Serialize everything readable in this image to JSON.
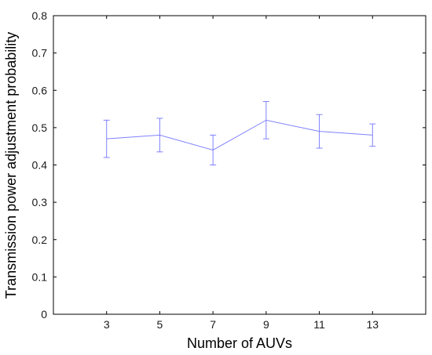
{
  "chart_data": {
    "type": "line",
    "xlabel": "Number of AUVs",
    "ylabel": "Transmission power adjustment probability",
    "xlim": [
      1,
      15
    ],
    "ylim": [
      0,
      0.8
    ],
    "x_ticks": [
      3,
      5,
      7,
      9,
      11,
      13
    ],
    "y_ticks": [
      0,
      0.1,
      0.2,
      0.3,
      0.4,
      0.5,
      0.6,
      0.7,
      0.8
    ],
    "x_tick_labels": [
      "3",
      "5",
      "7",
      "9",
      "11",
      "13"
    ],
    "y_tick_labels": [
      "0",
      "0.1",
      "0.2",
      "0.3",
      "0.4",
      "0.5",
      "0.6",
      "0.7",
      "0.8"
    ],
    "grid": false,
    "legend": "none",
    "series": [
      {
        "color": "#8080ff",
        "x": [
          3,
          5,
          7,
          9,
          11,
          13
        ],
        "y": [
          0.47,
          0.48,
          0.44,
          0.52,
          0.49,
          0.48
        ],
        "error_low": [
          0.42,
          0.435,
          0.4,
          0.47,
          0.445,
          0.45
        ],
        "error_high": [
          0.52,
          0.525,
          0.48,
          0.57,
          0.535,
          0.51
        ]
      }
    ]
  }
}
